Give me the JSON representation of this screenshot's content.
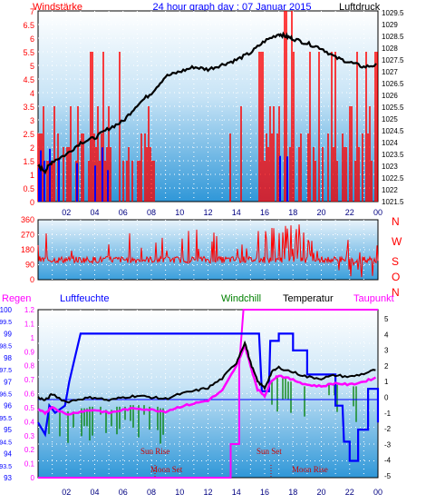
{
  "colors": {
    "wind": "#ff0000",
    "gust": "#0000ff",
    "pressure": "#000000",
    "winddir": "#ff0000",
    "humidity": "#0000ff",
    "rain": "#ff00ff",
    "windchill": "#008000",
    "temperature": "#000000",
    "dewpoint": "#ff00ff",
    "title": "#0000ff",
    "sunmoon": "#cc0000"
  },
  "header": {
    "left": "Windstärke",
    "title": "24 hour graph day : 07 Januar 2015",
    "right": "Luftdruck"
  },
  "panel1": {
    "left_ticks": [
      "7",
      "6.5",
      "6",
      "5.5",
      "5",
      "4.5",
      "4",
      "3.5",
      "3",
      "2.5",
      "2",
      "1.5",
      "1",
      "0.5",
      "0"
    ],
    "right_ticks": [
      "1029.5",
      "1029",
      "1028.5",
      "1028",
      "1027.5",
      "1027",
      "1026.5",
      "1026",
      "1025.5",
      "1025",
      "1024.5",
      "1024",
      "1023.5",
      "1023",
      "1022.5",
      "1022",
      "1021.5"
    ],
    "x_ticks": [
      "02",
      "04",
      "06",
      "08",
      "10",
      "12",
      "14",
      "16",
      "18",
      "20",
      "22",
      "00"
    ]
  },
  "panel2": {
    "left_ticks": [
      "360",
      "270",
      "180",
      "90",
      "0"
    ],
    "dir_labels": [
      "N",
      "W",
      "S",
      "O",
      "N"
    ]
  },
  "panel3": {
    "legend_rain": "Regen",
    "legend_humidity": "Luftfeuchte",
    "legend_windchill": "Windchill",
    "legend_temperature": "Temperatur",
    "legend_dewpoint": "Taupunkt",
    "hum_ticks": [
      "100",
      "99",
      "98",
      "97",
      "96",
      "95",
      "94",
      "93"
    ],
    "hum_sub_ticks": [
      "99.5",
      "98.5",
      "97.5",
      "96.5",
      "95.5",
      "94.5",
      "93.5"
    ],
    "rain_ticks": [
      "1.2",
      "1.1",
      "1",
      "0.9",
      "0.8",
      "0.7",
      "0.6",
      "0.5",
      "0.4",
      "0.3",
      "0.2",
      "0.1",
      "0"
    ],
    "temp_ticks": [
      "5",
      "4",
      "3",
      "2",
      "1",
      "0",
      "-1",
      "-2",
      "-3",
      "-4",
      "-5"
    ],
    "x_ticks": [
      "02",
      "04",
      "06",
      "08",
      "10",
      "12",
      "14",
      "16",
      "18",
      "20",
      "22",
      "00"
    ],
    "sun_rise": "Sun Rise",
    "sun_set": "Sun Set",
    "moon_set": "Moon Set",
    "moon_rise": "Moon Rise"
  }
}
